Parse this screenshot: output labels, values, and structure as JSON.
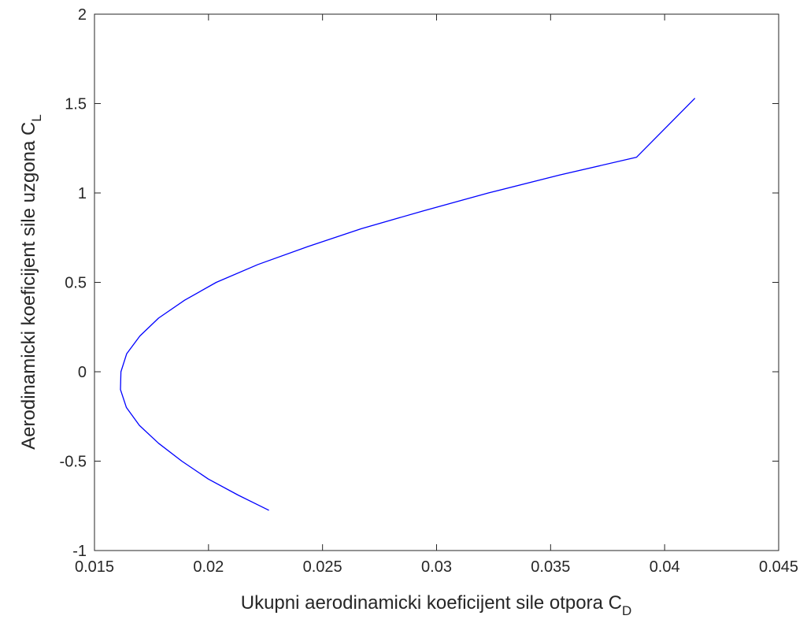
{
  "chart_data": {
    "type": "line",
    "title": "",
    "xlabel": "Ukupni aerodinamicki koeficijent sile otpora C",
    "xlabel_subscript": "D",
    "ylabel": "Aerodinamicki koeficijent sile uzgona C",
    "ylabel_subscript": "L",
    "xlim": [
      0.015,
      0.045
    ],
    "ylim": [
      -1,
      2
    ],
    "xticks": [
      0.015,
      0.02,
      0.025,
      0.03,
      0.035,
      0.04,
      0.045
    ],
    "xtick_labels": [
      "0.015",
      "0.02",
      "0.025",
      "0.03",
      "0.035",
      "0.04",
      "0.045"
    ],
    "yticks": [
      -1,
      -0.5,
      0,
      0.5,
      1,
      1.5,
      2
    ],
    "ytick_labels": [
      "-1",
      "-0.5",
      "0",
      "0.5",
      "1",
      "1.5",
      "2"
    ],
    "grid": false,
    "series": [
      {
        "color": "#0000ff",
        "x": [
          0.02265,
          0.0213,
          0.01999,
          0.01883,
          0.01781,
          0.01697,
          0.0164,
          0.01614,
          0.01616,
          0.01641,
          0.01699,
          0.01781,
          0.01895,
          0.02034,
          0.02217,
          0.02435,
          0.0267,
          0.02942,
          0.03227,
          0.03539,
          0.03877,
          0.04133
        ],
        "y": [
          -0.775,
          -0.69,
          -0.6,
          -0.5,
          -0.4,
          -0.3,
          -0.2,
          -0.1,
          0.0,
          0.1,
          0.2,
          0.3,
          0.4,
          0.5,
          0.6,
          0.7,
          0.8,
          0.9,
          1.0,
          1.1,
          1.2,
          1.53
        ]
      }
    ]
  }
}
